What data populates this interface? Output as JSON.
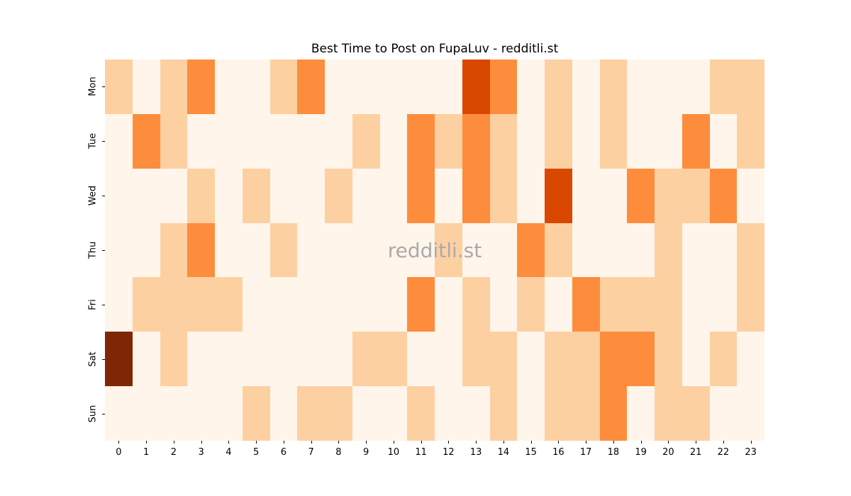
{
  "title": "Best Time to Post on FupaLuv - redditli.st",
  "watermark": "redditli.st",
  "colors": {
    "background": "#ffffff",
    "title_text": "#000000",
    "tick_text": "#000000",
    "watermark_text": "#aaaaaa"
  },
  "chart_data": {
    "type": "heatmap",
    "title": "Best Time to Post on FupaLuv - redditli.st",
    "xlabel": "",
    "ylabel": "",
    "x_categories": [
      "0",
      "1",
      "2",
      "3",
      "4",
      "5",
      "6",
      "7",
      "8",
      "9",
      "10",
      "11",
      "12",
      "13",
      "14",
      "15",
      "16",
      "17",
      "18",
      "19",
      "20",
      "21",
      "22",
      "23"
    ],
    "y_categories": [
      "Mon",
      "Tue",
      "Wed",
      "Thu",
      "Fri",
      "Sat",
      "Sun"
    ],
    "series": [
      {
        "name": "Mon",
        "values": [
          1,
          0,
          1,
          2,
          0,
          0,
          1,
          2,
          0,
          0,
          0,
          0,
          0,
          3,
          2,
          0,
          1,
          0,
          1,
          0,
          0,
          0,
          1,
          1
        ]
      },
      {
        "name": "Tue",
        "values": [
          0,
          2,
          1,
          0,
          0,
          0,
          0,
          0,
          0,
          1,
          0,
          2,
          1,
          2,
          1,
          0,
          1,
          0,
          1,
          0,
          0,
          2,
          0,
          1
        ]
      },
      {
        "name": "Wed",
        "values": [
          0,
          0,
          0,
          1,
          0,
          1,
          0,
          0,
          1,
          0,
          0,
          2,
          0,
          2,
          1,
          0,
          3,
          0,
          0,
          2,
          1,
          1,
          2,
          0
        ]
      },
      {
        "name": "Thu",
        "values": [
          0,
          0,
          1,
          2,
          0,
          0,
          1,
          0,
          0,
          0,
          0,
          0,
          1,
          0,
          0,
          2,
          1,
          0,
          0,
          0,
          1,
          0,
          0,
          1
        ]
      },
      {
        "name": "Fri",
        "values": [
          0,
          1,
          1,
          1,
          1,
          0,
          0,
          0,
          0,
          0,
          0,
          2,
          0,
          1,
          0,
          1,
          0,
          2,
          1,
          1,
          1,
          0,
          0,
          1
        ]
      },
      {
        "name": "Sat",
        "values": [
          4,
          0,
          1,
          0,
          0,
          0,
          0,
          0,
          0,
          1,
          1,
          0,
          0,
          1,
          1,
          0,
          1,
          1,
          2,
          2,
          1,
          0,
          1,
          0
        ]
      },
      {
        "name": "Sun",
        "values": [
          0,
          0,
          0,
          0,
          0,
          1,
          0,
          1,
          1,
          0,
          0,
          1,
          0,
          0,
          1,
          0,
          1,
          1,
          2,
          0,
          1,
          1,
          0,
          0
        ]
      }
    ],
    "value_range": [
      0,
      4
    ],
    "colormap_name": "Oranges",
    "colormap": {
      "0": "#fff5eb",
      "1": "#fdd0a2",
      "2": "#fd8d3c",
      "3": "#d94801",
      "4": "#7f2704"
    },
    "legend": "none",
    "grid": false
  }
}
